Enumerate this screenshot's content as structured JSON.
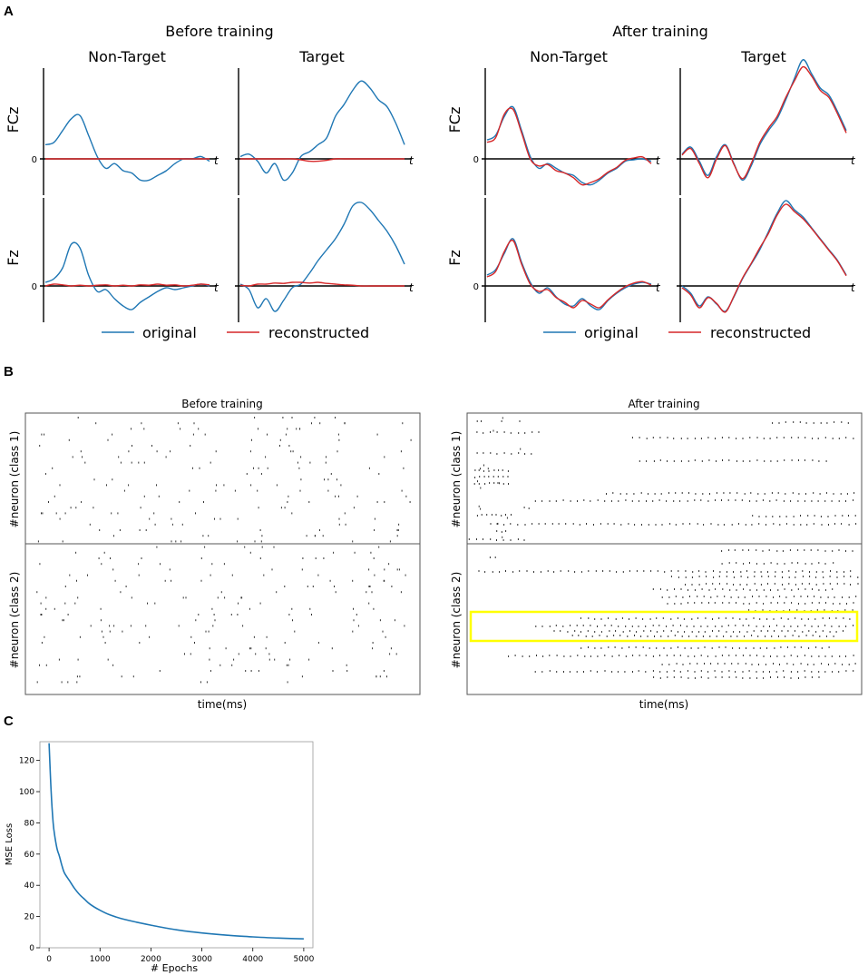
{
  "panel_labels": {
    "a": "A",
    "b": "B",
    "c": "C"
  },
  "colors": {
    "original": "#1f77b4",
    "reconstructed": "#d62728",
    "highlight": "#ffff00",
    "spike": "#333333"
  },
  "panel_a": {
    "groups": [
      {
        "title": "Before training",
        "cols": [
          "Non-Target",
          "Target"
        ]
      },
      {
        "title": "After training",
        "cols": [
          "Non-Target",
          "Target"
        ]
      }
    ],
    "channels": [
      "FCz",
      "Fz"
    ],
    "zero_label": "0",
    "t_label": "t",
    "legend": {
      "original": "original",
      "reconstructed": "reconstructed"
    }
  },
  "panel_b": {
    "before_title": "Before training",
    "after_title": "After training",
    "ylabel_class1": "#neuron (class 1)",
    "ylabel_class2": "#neuron (class 2)",
    "xlabel": "time(ms)"
  },
  "chart_data": [
    {
      "type": "line",
      "title": "Before training / After training ERP reconstructions",
      "x": "normalized time 0-1 (axis t, no ticks)",
      "series": [
        {
          "name": "original",
          "panel": "before-FCz-nontarget",
          "values": [
            0.3,
            0.35,
            0.6,
            0.85,
            0.92,
            0.5,
            0.05,
            -0.2,
            -0.1,
            -0.25,
            -0.3,
            -0.45,
            -0.45,
            -0.35,
            -0.25,
            -0.1,
            0.0,
            0.0,
            0.05,
            -0.05
          ]
        },
        {
          "name": "reconstructed",
          "panel": "before-FCz-nontarget",
          "values": [
            0,
            0,
            0,
            0,
            0,
            0,
            0,
            0,
            0,
            0,
            0,
            0,
            0,
            0,
            0,
            0,
            0,
            0,
            0,
            0
          ]
        },
        {
          "name": "original",
          "panel": "before-FCz-target",
          "values": [
            0.05,
            0.1,
            -0.05,
            -0.3,
            -0.1,
            -0.45,
            -0.3,
            0.05,
            0.15,
            0.3,
            0.45,
            0.9,
            1.15,
            1.45,
            1.65,
            1.5,
            1.25,
            1.1,
            0.75,
            0.3
          ]
        },
        {
          "name": "reconstructed",
          "panel": "before-FCz-target",
          "values": [
            0,
            0,
            0,
            0,
            0,
            0,
            0,
            -0.02,
            -0.05,
            -0.05,
            -0.03,
            0,
            0,
            0,
            0,
            0,
            0,
            0,
            0,
            0
          ]
        },
        {
          "name": "original",
          "panel": "before-Fz-nontarget",
          "values": [
            0.1,
            0.2,
            0.5,
            1.15,
            1.05,
            0.3,
            -0.15,
            -0.1,
            -0.35,
            -0.55,
            -0.65,
            -0.45,
            -0.3,
            -0.15,
            -0.05,
            -0.1,
            -0.05,
            0.0,
            0.05,
            0.0
          ]
        },
        {
          "name": "reconstructed",
          "panel": "before-Fz-nontarget",
          "values": [
            0.0,
            0.05,
            0.03,
            0.0,
            0.02,
            0.0,
            0.02,
            0.03,
            0.0,
            0.02,
            0.0,
            0.03,
            0.02,
            0.05,
            0.02,
            0.03,
            0.0,
            0.02,
            0.05,
            0.03
          ]
        },
        {
          "name": "original",
          "panel": "before-Fz-target",
          "values": [
            0.05,
            -0.1,
            -0.6,
            -0.35,
            -0.7,
            -0.4,
            -0.05,
            0.05,
            0.35,
            0.7,
            1.0,
            1.3,
            1.7,
            2.2,
            2.3,
            2.1,
            1.8,
            1.5,
            1.1,
            0.6
          ]
        },
        {
          "name": "reconstructed",
          "panel": "before-Fz-target",
          "values": [
            0.02,
            0.0,
            0.05,
            0.05,
            0.08,
            0.07,
            0.1,
            0.1,
            0.08,
            0.1,
            0.07,
            0.05,
            0.03,
            0.02,
            0.0,
            0.0,
            0.0,
            0.0,
            0.0,
            0.0
          ]
        },
        {
          "name": "original",
          "panel": "after-FCz-nontarget",
          "values": [
            0.4,
            0.5,
            0.9,
            1.1,
            0.6,
            0.05,
            -0.2,
            -0.1,
            -0.2,
            -0.3,
            -0.35,
            -0.5,
            -0.55,
            -0.45,
            -0.3,
            -0.2,
            -0.05,
            -0.02,
            0.0,
            -0.05
          ]
        },
        {
          "name": "reconstructed",
          "panel": "after-FCz-nontarget",
          "values": [
            0.35,
            0.45,
            0.95,
            1.05,
            0.55,
            0.0,
            -0.15,
            -0.12,
            -0.25,
            -0.3,
            -0.4,
            -0.55,
            -0.5,
            -0.42,
            -0.28,
            -0.18,
            -0.03,
            0.02,
            0.04,
            -0.1
          ]
        },
        {
          "name": "original",
          "panel": "after-FCz-target",
          "values": [
            0.1,
            0.25,
            -0.05,
            -0.35,
            0.05,
            0.3,
            -0.1,
            -0.45,
            -0.15,
            0.3,
            0.6,
            0.85,
            1.25,
            1.7,
            2.1,
            1.8,
            1.5,
            1.35,
            1.0,
            0.6
          ]
        },
        {
          "name": "reconstructed",
          "panel": "after-FCz-target",
          "values": [
            0.08,
            0.22,
            -0.1,
            -0.4,
            0.0,
            0.28,
            -0.12,
            -0.42,
            -0.1,
            0.35,
            0.65,
            0.9,
            1.3,
            1.65,
            1.95,
            1.75,
            1.45,
            1.3,
            0.95,
            0.55
          ]
        },
        {
          "name": "original",
          "panel": "after-Fz-nontarget",
          "values": [
            0.3,
            0.45,
            0.9,
            1.3,
            0.65,
            0.1,
            -0.2,
            -0.05,
            -0.3,
            -0.5,
            -0.55,
            -0.35,
            -0.55,
            -0.65,
            -0.4,
            -0.2,
            -0.05,
            0.05,
            0.1,
            0.05
          ]
        },
        {
          "name": "reconstructed",
          "panel": "after-Fz-nontarget",
          "values": [
            0.25,
            0.4,
            0.95,
            1.25,
            0.6,
            0.05,
            -0.15,
            -0.1,
            -0.32,
            -0.45,
            -0.6,
            -0.4,
            -0.5,
            -0.6,
            -0.38,
            -0.18,
            -0.02,
            0.08,
            0.12,
            0.02
          ]
        },
        {
          "name": "original",
          "panel": "after-Fz-target",
          "values": [
            0.0,
            -0.2,
            -0.55,
            -0.3,
            -0.5,
            -0.7,
            -0.3,
            0.2,
            0.6,
            1.0,
            1.5,
            2.0,
            2.35,
            2.1,
            1.9,
            1.6,
            1.3,
            1.0,
            0.7,
            0.3
          ]
        },
        {
          "name": "reconstructed",
          "panel": "after-Fz-target",
          "values": [
            -0.05,
            -0.25,
            -0.6,
            -0.32,
            -0.48,
            -0.72,
            -0.28,
            0.22,
            0.62,
            1.05,
            1.45,
            1.95,
            2.25,
            2.05,
            1.85,
            1.58,
            1.28,
            0.98,
            0.68,
            0.28
          ]
        }
      ]
    },
    {
      "type": "scatter",
      "title": "Before training",
      "xlabel": "time(ms)",
      "ylabel": "#neuron (class 1) / #neuron (class 2)",
      "description": "raster plot, irregular spikes"
    },
    {
      "type": "scatter",
      "title": "After training",
      "xlabel": "time(ms)",
      "ylabel": "#neuron (class 1) / #neuron (class 2)",
      "description": "raster plot, regular spike trains"
    },
    {
      "type": "line",
      "title": "",
      "xlabel": "# Epochs",
      "ylabel": "MSE Loss",
      "xlim": [
        -180,
        5180
      ],
      "ylim": [
        0,
        132
      ],
      "x_ticks": [
        "0",
        "1000",
        "2000",
        "3000",
        "4000",
        "5000"
      ],
      "y_ticks": [
        "0",
        "20",
        "40",
        "60",
        "80",
        "100",
        "120"
      ],
      "series": [
        {
          "name": "MSE Loss",
          "x": [
            0,
            40,
            80,
            120,
            160,
            200,
            250,
            300,
            400,
            500,
            600,
            700,
            800,
            1000,
            1200,
            1500,
            2000,
            2500,
            3000,
            3500,
            4000,
            4500,
            5000
          ],
          "values": [
            131,
            100,
            80,
            70,
            63,
            59,
            53,
            48,
            43,
            38,
            34,
            31,
            28,
            24,
            21,
            18,
            14.5,
            11.5,
            9.5,
            8,
            7,
            6.2,
            5.7
          ]
        }
      ]
    }
  ]
}
